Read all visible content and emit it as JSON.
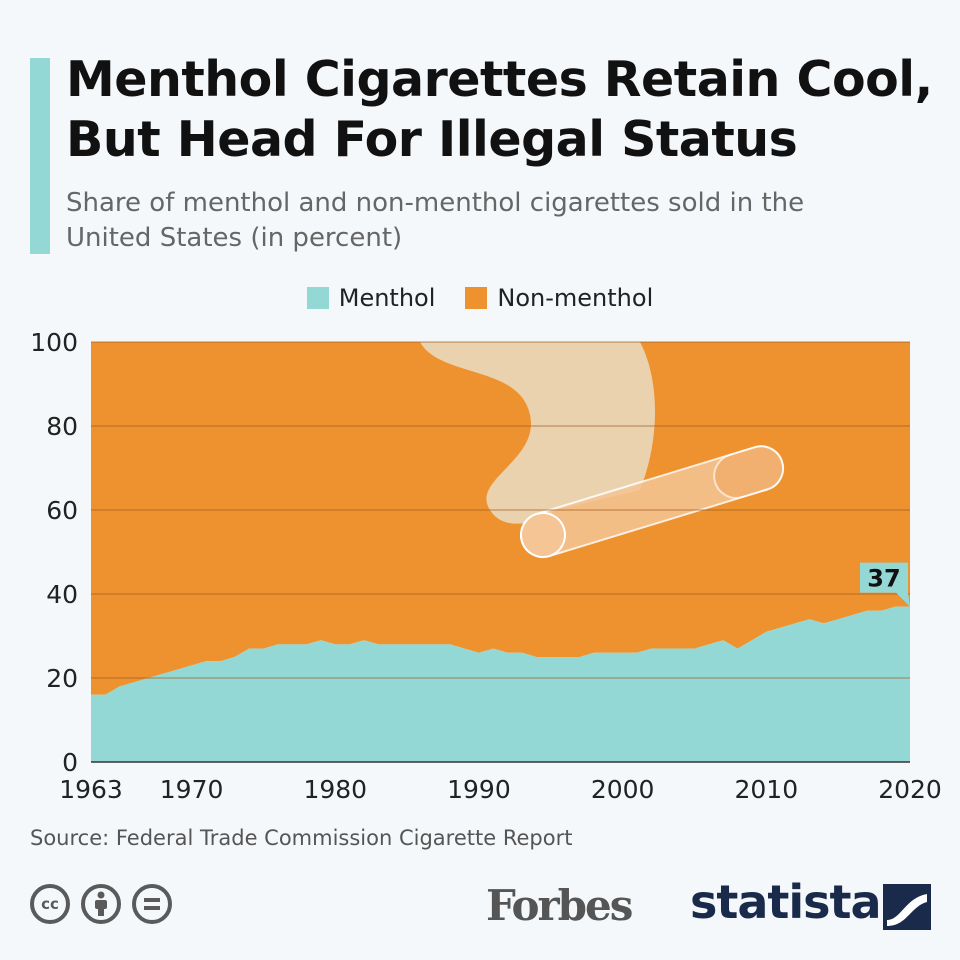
{
  "header": {
    "title": "Menthol Cigarettes Retain Cool, But Head For Illegal Status",
    "subtitle": "Share of menthol and non-menthol cigarettes sold in the United States (in percent)"
  },
  "colors": {
    "accent": "#94d8d6",
    "menthol": "#94d8d6",
    "non_menthol": "#ee922f",
    "gridline": "#9a5a1e",
    "label_bg": "#94d8d6"
  },
  "chart_data": {
    "type": "area",
    "stacked": true,
    "x": [
      1963,
      1964,
      1965,
      1966,
      1967,
      1968,
      1969,
      1970,
      1971,
      1972,
      1973,
      1974,
      1975,
      1976,
      1977,
      1978,
      1979,
      1980,
      1981,
      1982,
      1983,
      1984,
      1985,
      1986,
      1987,
      1988,
      1989,
      1990,
      1991,
      1992,
      1993,
      1994,
      1995,
      1996,
      1997,
      1998,
      1999,
      2000,
      2001,
      2002,
      2003,
      2004,
      2005,
      2006,
      2007,
      2008,
      2009,
      2010,
      2011,
      2012,
      2013,
      2014,
      2015,
      2016,
      2017,
      2018,
      2019,
      2020
    ],
    "series": [
      {
        "name": "Menthol",
        "values": [
          16,
          16,
          18,
          19,
          20,
          21,
          22,
          23,
          24,
          24,
          25,
          27,
          27,
          28,
          28,
          28,
          29,
          28,
          28,
          29,
          28,
          28,
          28,
          28,
          28,
          28,
          27,
          26,
          27,
          26,
          26,
          25,
          25,
          25,
          25,
          26,
          26,
          26,
          26,
          27,
          27,
          27,
          27,
          28,
          29,
          27,
          29,
          31,
          32,
          33,
          34,
          33,
          34,
          35,
          36,
          36,
          37,
          37
        ]
      },
      {
        "name": "Non-menthol",
        "values": [
          84,
          84,
          82,
          81,
          80,
          79,
          78,
          77,
          76,
          76,
          75,
          73,
          73,
          72,
          72,
          72,
          71,
          72,
          72,
          71,
          72,
          72,
          72,
          72,
          72,
          72,
          73,
          74,
          73,
          74,
          74,
          75,
          75,
          75,
          75,
          74,
          74,
          74,
          74,
          73,
          73,
          73,
          73,
          72,
          71,
          73,
          71,
          69,
          68,
          67,
          66,
          67,
          66,
          65,
          64,
          64,
          63,
          63
        ]
      }
    ],
    "ylim": [
      0,
      100
    ],
    "yticks": [
      "0",
      "20",
      "40",
      "60",
      "80",
      "100"
    ],
    "xticks": [
      {
        "value": 1963,
        "label": "1963"
      },
      {
        "value": 1970,
        "label": "1970"
      },
      {
        "value": 1980,
        "label": "1980"
      },
      {
        "value": 1990,
        "label": "1990"
      },
      {
        "value": 2000,
        "label": "2000"
      },
      {
        "value": 2010,
        "label": "2010"
      },
      {
        "value": 2020,
        "label": "2020"
      }
    ],
    "grid": true,
    "legend_position": "top-center",
    "annotation": {
      "x": 2020,
      "value": 37,
      "label": "37"
    }
  },
  "legend": {
    "menthol": "Menthol",
    "non_menthol": "Non-menthol"
  },
  "footer": {
    "source": "Source: Federal Trade Commission Cigarette Report",
    "forbes": "Forbes",
    "statista": "statista",
    "license_icons": [
      "cc-icon",
      "attribution-icon",
      "no-derivatives-icon"
    ]
  }
}
